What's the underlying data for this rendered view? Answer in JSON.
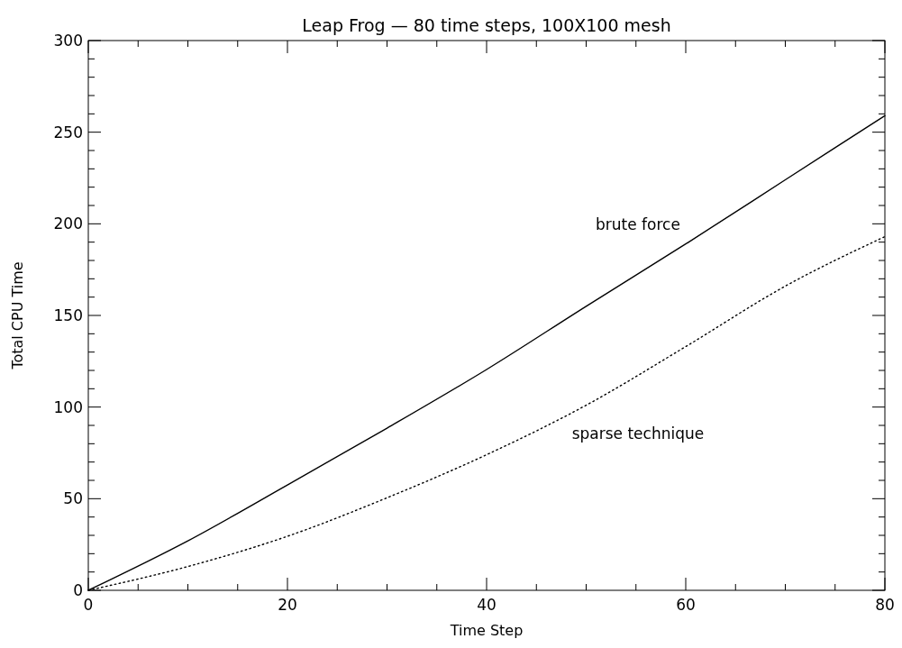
{
  "chart_data": {
    "type": "line",
    "title": "Leap Frog — 80 time steps, 100X100 mesh",
    "xlabel": "Time Step",
    "ylabel": "Total CPU Time",
    "x": [
      0,
      10,
      20,
      30,
      40,
      50,
      60,
      70,
      80
    ],
    "series": [
      {
        "name": "brute force",
        "color": "#000000",
        "line_style": "solid",
        "values": [
          0,
          27,
          57.5,
          88.5,
          120.5,
          155,
          189,
          224,
          259
        ]
      },
      {
        "name": "sparse technique",
        "color": "#000000",
        "line_style": "dotted",
        "values": [
          0,
          13,
          29.5,
          50.5,
          74,
          101,
          133,
          166,
          193
        ]
      }
    ],
    "xlim": [
      0,
      80
    ],
    "xticks": [
      0,
      20,
      40,
      60,
      80
    ],
    "ylim": [
      0,
      300
    ],
    "yticks": [
      0,
      50,
      100,
      150,
      200,
      250,
      300
    ],
    "grid": false
  }
}
